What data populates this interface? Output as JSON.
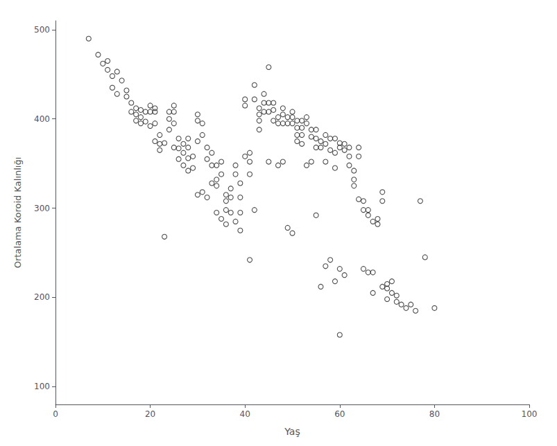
{
  "chart_data": {
    "type": "scatter",
    "xlabel": "Yaş",
    "ylabel": "Ortalama Koroid Kalınlığı",
    "xlim": [
      0,
      100
    ],
    "ylim": [
      80,
      510
    ],
    "xticks": [
      0,
      20,
      40,
      60,
      80,
      100
    ],
    "yticks": [
      100,
      200,
      300,
      400,
      500
    ],
    "grid": false,
    "marker": "circle",
    "color": "#222222",
    "x": [
      7,
      9,
      10,
      11,
      11,
      12,
      12,
      13,
      13,
      14,
      15,
      15,
      16,
      16,
      17,
      17,
      17,
      18,
      18,
      18,
      19,
      19,
      20,
      20,
      20,
      21,
      21,
      21,
      21,
      22,
      22,
      22,
      23,
      23,
      24,
      24,
      24,
      25,
      25,
      25,
      25,
      26,
      26,
      26,
      27,
      27,
      27,
      28,
      28,
      28,
      28,
      29,
      29,
      30,
      30,
      30,
      30,
      31,
      31,
      31,
      32,
      32,
      32,
      33,
      33,
      33,
      34,
      34,
      34,
      34,
      35,
      35,
      35,
      36,
      36,
      36,
      36,
      37,
      37,
      37,
      38,
      38,
      38,
      39,
      39,
      39,
      39,
      40,
      40,
      40,
      41,
      41,
      41,
      41,
      42,
      42,
      42,
      43,
      43,
      43,
      43,
      44,
      44,
      44,
      45,
      45,
      45,
      45,
      46,
      46,
      46,
      47,
      47,
      47,
      48,
      48,
      48,
      48,
      49,
      49,
      49,
      50,
      50,
      50,
      50,
      51,
      51,
      51,
      51,
      52,
      52,
      52,
      52,
      53,
      53,
      53,
      54,
      54,
      54,
      55,
      55,
      55,
      55,
      56,
      56,
      56,
      57,
      57,
      57,
      57,
      58,
      58,
      58,
      59,
      59,
      59,
      59,
      60,
      60,
      60,
      60,
      61,
      61,
      61,
      62,
      62,
      62,
      63,
      63,
      63,
      64,
      64,
      64,
      65,
      65,
      65,
      66,
      66,
      66,
      67,
      67,
      67,
      68,
      68,
      69,
      69,
      69,
      70,
      70,
      70,
      71,
      71,
      72,
      72,
      73,
      74,
      75,
      76,
      77,
      78,
      80
    ],
    "values": [
      490,
      472,
      462,
      465,
      455,
      448,
      435,
      453,
      428,
      443,
      432,
      425,
      418,
      408,
      412,
      405,
      398,
      410,
      402,
      395,
      408,
      397,
      415,
      408,
      392,
      412,
      408,
      395,
      375,
      382,
      372,
      365,
      373,
      268,
      408,
      400,
      388,
      415,
      408,
      395,
      368,
      378,
      367,
      355,
      372,
      362,
      348,
      378,
      368,
      356,
      342,
      358,
      345,
      405,
      398,
      375,
      315,
      395,
      382,
      318,
      368,
      355,
      312,
      362,
      348,
      328,
      348,
      332,
      325,
      295,
      352,
      338,
      288,
      315,
      308,
      298,
      282,
      322,
      312,
      295,
      348,
      338,
      285,
      328,
      312,
      295,
      275,
      422,
      415,
      358,
      362,
      352,
      338,
      242,
      438,
      422,
      298,
      412,
      405,
      398,
      388,
      428,
      418,
      408,
      458,
      418,
      408,
      352,
      418,
      410,
      398,
      402,
      395,
      348,
      412,
      405,
      395,
      352,
      402,
      395,
      278,
      408,
      402,
      395,
      272,
      398,
      390,
      382,
      375,
      398,
      390,
      382,
      372,
      402,
      395,
      348,
      388,
      380,
      352,
      388,
      378,
      368,
      292,
      375,
      368,
      212,
      382,
      372,
      352,
      235,
      378,
      365,
      242,
      378,
      362,
      345,
      218,
      373,
      368,
      158,
      232,
      372,
      365,
      225,
      368,
      358,
      348,
      342,
      332,
      325,
      368,
      358,
      310,
      308,
      298,
      232,
      228,
      298,
      292,
      228,
      205,
      285,
      288,
      282,
      318,
      308,
      212,
      215,
      210,
      198,
      218,
      205,
      202,
      195,
      192,
      188,
      192,
      185,
      308,
      245,
      188
    ]
  }
}
